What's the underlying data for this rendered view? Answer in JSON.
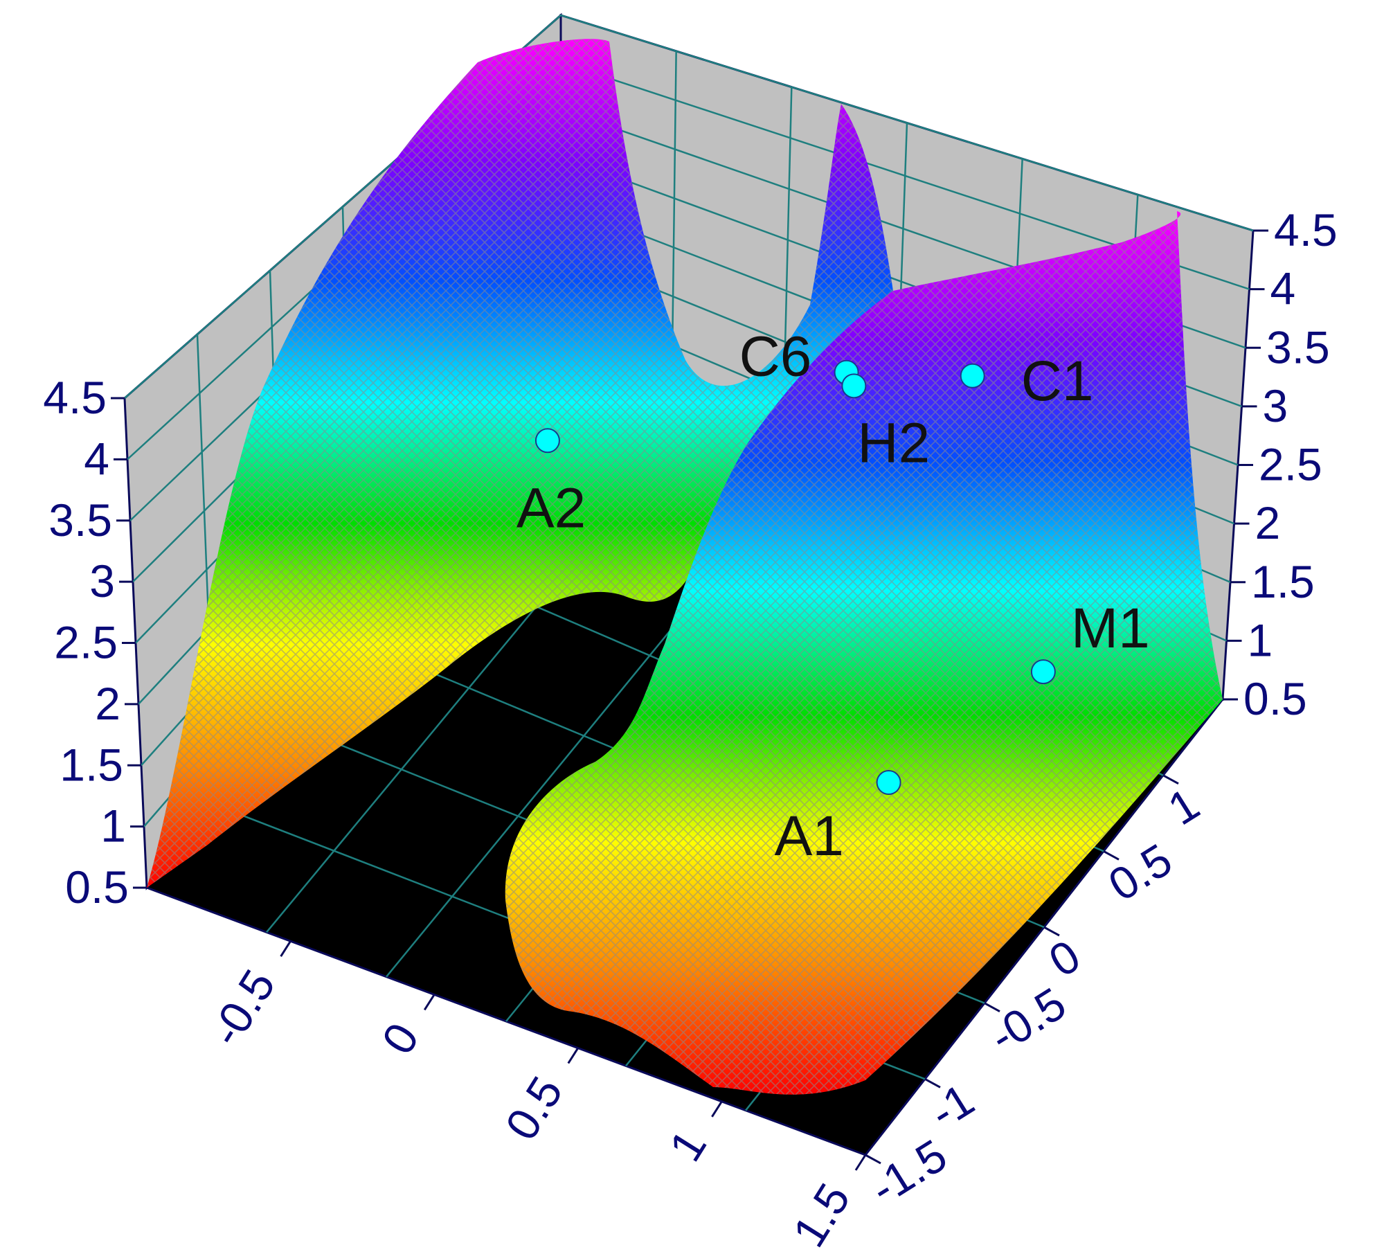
{
  "chart_data": {
    "type": "surface3d",
    "title": "",
    "xlabel": "",
    "ylabel": "",
    "zlabel": "",
    "x_ticks": [
      "-0.5",
      "0",
      "0.5",
      "1",
      "1.5"
    ],
    "y_ticks": [
      "-1.5",
      "-1",
      "-0.5",
      "0",
      "0.5",
      "1"
    ],
    "z_ticks_left": [
      "0.5",
      "1",
      "1.5",
      "2",
      "2.5",
      "3",
      "3.5",
      "4",
      "4.5"
    ],
    "z_ticks_right": [
      "0.5",
      "1",
      "1.5",
      "2",
      "2.5",
      "3",
      "3.5",
      "4",
      "4.5"
    ],
    "xlim": [
      -1.0,
      1.5
    ],
    "ylim": [
      -1.5,
      1.5
    ],
    "zlim": [
      0.5,
      4.5
    ],
    "colormap": [
      "#ff0000",
      "#ff8800",
      "#ffff00",
      "#00dd00",
      "#00ffff",
      "#0050ff",
      "#8000ff",
      "#ff00ff"
    ],
    "points": [
      {
        "label": "A2",
        "x": -0.9,
        "y": 1.2,
        "z": 0.6,
        "color": "#00ffff"
      },
      {
        "label": "A1",
        "x": 1.05,
        "y": -0.35,
        "z": 1.6,
        "color": "#00ffff"
      },
      {
        "label": "M1",
        "x": 1.1,
        "y": 0.65,
        "z": 1.2,
        "color": "#00ffff"
      },
      {
        "label": "C1",
        "x": 1.0,
        "y": 0.45,
        "z": 3.8,
        "color": "#00ffff"
      },
      {
        "label": "C6",
        "x": 0.4,
        "y": 0.75,
        "z": 2.9,
        "color": "#00ffff"
      },
      {
        "label": "H2",
        "x": 0.45,
        "y": 0.7,
        "z": 2.9,
        "color": "#00ffff"
      }
    ],
    "grid": true,
    "colors": {
      "wall": "#c0c0c0",
      "floor": "#000000",
      "mesh": "#8a8a8a",
      "gridline": "#1e7f7f",
      "frame": "#0a0a5a",
      "tick_text": "#0a0a78"
    }
  }
}
